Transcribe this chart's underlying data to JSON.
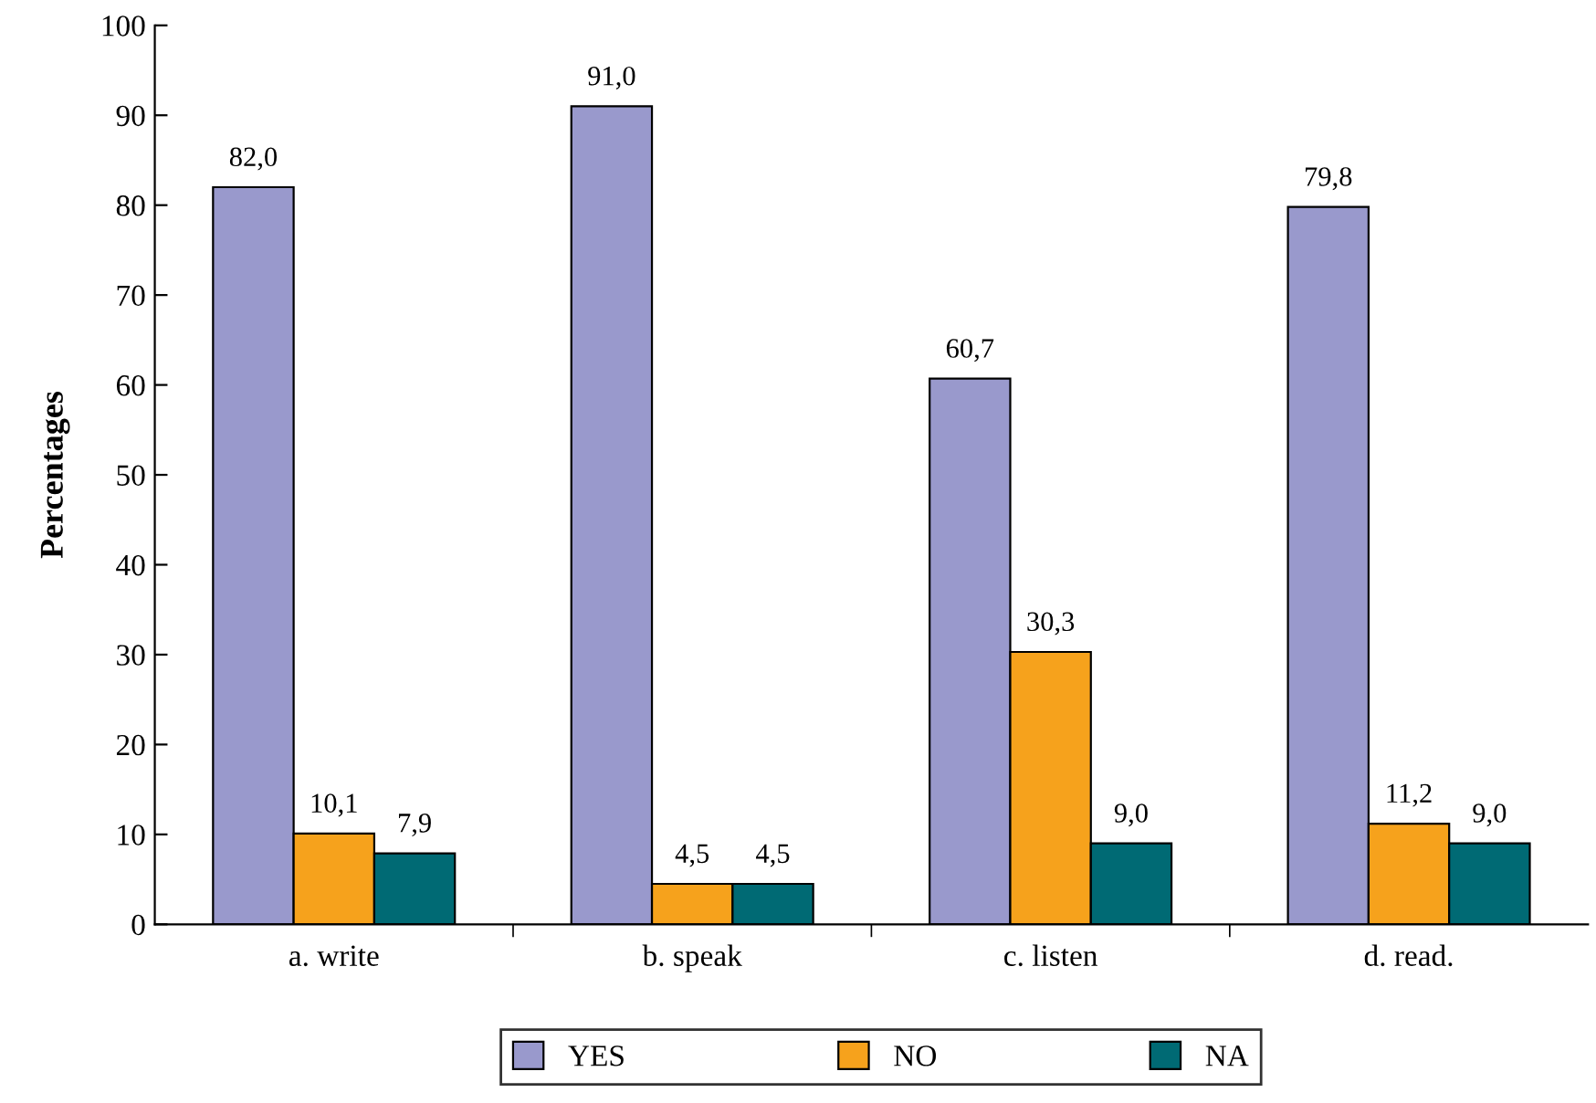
{
  "chart_data": {
    "type": "bar",
    "ylabel": "Percentages",
    "categories": [
      "a. write",
      "b. speak",
      "c. listen",
      "d. read."
    ],
    "series": [
      {
        "name": "YES",
        "color": "#9999cc",
        "values": [
          82.0,
          91.0,
          60.7,
          79.8
        ],
        "value_labels": [
          "82,0",
          "91,0",
          "60,7",
          "79,8"
        ]
      },
      {
        "name": "NO",
        "color": "#f6a21c",
        "values": [
          10.1,
          4.5,
          30.3,
          11.2
        ],
        "value_labels": [
          "10,1",
          "4,5",
          "30,3",
          "11,2"
        ]
      },
      {
        "name": "NA",
        "color": "#006a74",
        "values": [
          7.9,
          4.5,
          9.0,
          9.0
        ],
        "value_labels": [
          "7,9",
          "4,5",
          "9,0",
          "9,0"
        ]
      }
    ],
    "ylim": [
      0,
      100
    ],
    "yticks": [
      0,
      10,
      20,
      30,
      40,
      50,
      60,
      70,
      80,
      90,
      100
    ],
    "grid": false,
    "legend": "bottom"
  }
}
